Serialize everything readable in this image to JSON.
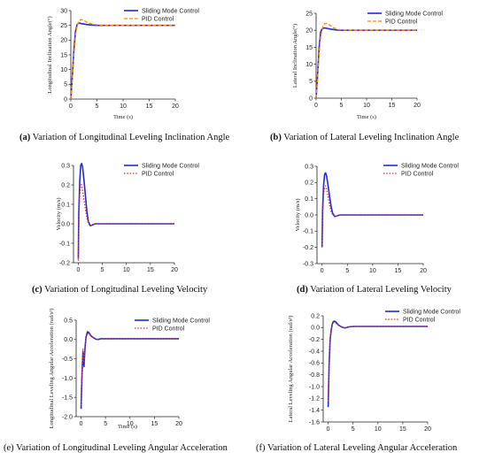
{
  "colors": {
    "smc": "#1f2bd6",
    "pid": "#ff8c00",
    "pid_red": "#e0302a",
    "axis": "#222222"
  },
  "panels": [
    {
      "letter": "(a)",
      "caption_text": "Variation of Longitudinal Leveling Inclination Angle",
      "caption_bold_letter": true
    },
    {
      "letter": "(b)",
      "caption_text": "Variation of Lateral Leveling Inclination Angle",
      "caption_bold_letter": true
    },
    {
      "letter": "(c)",
      "caption_text": "Variation of Longitudinal Leveling Velocity",
      "caption_bold_letter": true
    },
    {
      "letter": "(d)",
      "caption_text": "Variation of Lateral Leveling Velocity",
      "caption_bold_letter": true
    },
    {
      "letter": "(e)",
      "caption_text": "Variation of Longitudinal Leveling Angular Acceleration",
      "caption_bold_letter": false
    },
    {
      "letter": "(f)",
      "caption_text": "Variation of Lateral Leveling Angular Acceleration",
      "caption_bold_letter": false
    }
  ],
  "chart_data": [
    {
      "type": "line",
      "ylabel": "Longitudinal Inclination Angle(°)",
      "xlabel": "Time (s)",
      "xlim": [
        0,
        20
      ],
      "ylim": [
        0,
        30
      ],
      "xticks": [
        0,
        5,
        10,
        15,
        20
      ],
      "yticks": [
        0,
        5,
        10,
        15,
        20,
        25,
        30
      ],
      "legend_position": "top-right",
      "series": [
        {
          "name": "Sliding Mode Control",
          "style": "solid",
          "color": "#1f2bd6",
          "x": [
            0,
            0.3,
            0.6,
            0.9,
            1.2,
            1.5,
            2,
            3,
            4,
            5,
            7,
            10,
            15,
            20
          ],
          "y": [
            0,
            8,
            17,
            23,
            25.3,
            25.8,
            25.6,
            25.3,
            25.1,
            25,
            25,
            25,
            25,
            25
          ]
        },
        {
          "name": "PID Control",
          "style": "dashed",
          "color": "#ff8c00",
          "x": [
            0,
            0.3,
            0.6,
            0.9,
            1.2,
            1.6,
            2,
            2.5,
            3,
            4,
            5,
            6,
            8,
            10,
            15,
            20
          ],
          "y": [
            0,
            7,
            15,
            21.5,
            25,
            26.6,
            27,
            26.7,
            26.1,
            25.5,
            25.2,
            25.05,
            25,
            25,
            25,
            25
          ]
        }
      ]
    },
    {
      "type": "line",
      "ylabel": "Lateral Inclination Angle(°)",
      "xlabel": "Time (s)",
      "xlim": [
        0,
        20
      ],
      "ylim": [
        0,
        25
      ],
      "xticks": [
        0,
        5,
        10,
        15,
        20
      ],
      "yticks": [
        0,
        5,
        10,
        15,
        20,
        25
      ],
      "legend_position": "top-right",
      "series": [
        {
          "name": "Sliding Mode Control",
          "style": "solid",
          "color": "#1f2bd6",
          "x": [
            0,
            0.3,
            0.6,
            0.9,
            1.2,
            1.6,
            2,
            3,
            4,
            5,
            7,
            10,
            15,
            20
          ],
          "y": [
            0,
            7,
            15,
            19.5,
            20.4,
            20.7,
            20.6,
            20.3,
            20.1,
            20,
            20,
            20,
            20,
            20
          ]
        },
        {
          "name": "PID Control",
          "style": "dashed",
          "color": "#ff8c00",
          "x": [
            0,
            0.3,
            0.6,
            0.9,
            1.3,
            1.7,
            2.2,
            2.8,
            3.5,
            4.5,
            5.5,
            7,
            10,
            15,
            20
          ],
          "y": [
            0,
            6,
            13,
            18,
            21,
            21.9,
            22,
            21.4,
            20.7,
            20.2,
            20.05,
            20,
            20,
            20,
            20
          ]
        }
      ]
    },
    {
      "type": "line",
      "ylabel": "Velocity (m/s)",
      "xlabel": "",
      "xlim": [
        -1,
        20
      ],
      "ylim": [
        -0.2,
        0.3
      ],
      "xticks": [
        0,
        5,
        10,
        15,
        20
      ],
      "yticks": [
        -0.2,
        -0.1,
        0.0,
        0.1,
        0.2,
        0.3
      ],
      "legend_position": "top-right",
      "series": [
        {
          "name": "Sliding Mode Control",
          "style": "solid",
          "color": "#1f2bd6",
          "x": [
            0,
            0.1,
            0.3,
            0.5,
            0.7,
            0.9,
            1.2,
            1.5,
            1.8,
            2.1,
            2.5,
            3,
            3.5,
            4,
            5,
            7,
            10,
            15,
            20
          ],
          "y": [
            -0.18,
            0.05,
            0.22,
            0.3,
            0.31,
            0.29,
            0.22,
            0.14,
            0.06,
            0.01,
            -0.01,
            -0.005,
            0,
            0,
            0,
            0,
            0,
            0,
            0
          ]
        },
        {
          "name": "PID Control",
          "style": "dotted",
          "color": "#e0302a",
          "x": [
            0,
            0.1,
            0.3,
            0.5,
            0.7,
            0.9,
            1.2,
            1.5,
            1.8,
            2.1,
            2.5,
            3,
            3.5,
            4,
            5,
            7,
            10,
            15,
            20
          ],
          "y": [
            -0.19,
            0.02,
            0.15,
            0.2,
            0.2,
            0.17,
            0.12,
            0.07,
            0.03,
            0,
            -0.01,
            -0.005,
            0,
            0,
            0,
            0,
            0,
            0,
            0
          ]
        }
      ]
    },
    {
      "type": "line",
      "ylabel": "Velocity (m/s)",
      "xlabel": "",
      "xlim": [
        -1,
        20
      ],
      "ylim": [
        -0.3,
        0.3
      ],
      "xticks": [
        0,
        5,
        10,
        15,
        20
      ],
      "yticks": [
        -0.3,
        -0.2,
        -0.1,
        0.0,
        0.1,
        0.2,
        0.3
      ],
      "legend_position": "top-right",
      "series": [
        {
          "name": "Sliding Mode Control",
          "style": "solid",
          "color": "#1f2bd6",
          "x": [
            0,
            0.1,
            0.3,
            0.5,
            0.7,
            0.9,
            1.2,
            1.5,
            1.8,
            2.1,
            2.5,
            3,
            3.5,
            4,
            5,
            7,
            10,
            15,
            20
          ],
          "y": [
            -0.2,
            0.03,
            0.18,
            0.25,
            0.26,
            0.24,
            0.18,
            0.11,
            0.05,
            0.01,
            -0.01,
            -0.005,
            0,
            0,
            0,
            0,
            0,
            0,
            0
          ]
        },
        {
          "name": "PID Control",
          "style": "dotted",
          "color": "#e0302a",
          "x": [
            0,
            0.1,
            0.3,
            0.5,
            0.7,
            0.9,
            1.2,
            1.5,
            1.8,
            2.1,
            2.5,
            3,
            3.5,
            4,
            5,
            7,
            10,
            15,
            20
          ],
          "y": [
            -0.2,
            0.0,
            0.12,
            0.17,
            0.18,
            0.16,
            0.11,
            0.06,
            0.02,
            0,
            -0.01,
            -0.005,
            0,
            0,
            0,
            0,
            0,
            0,
            0
          ]
        }
      ]
    },
    {
      "type": "line",
      "ylabel": "Longitudinal Leveling Angular Acceleration (rad/s²)",
      "xlabel": "Time (s)",
      "xlim": [
        -1,
        20
      ],
      "ylim": [
        -2.0,
        0.5
      ],
      "xticks": [
        0,
        5,
        10,
        15,
        20
      ],
      "yticks": [
        -2.0,
        -1.5,
        -1.0,
        -0.5,
        0.0,
        0.5
      ],
      "legend_position": "top-right",
      "series": [
        {
          "name": "Sliding Mode Control",
          "style": "solid",
          "color": "#1f2bd6",
          "x": [
            0,
            0.2,
            0.4,
            0.6,
            0.8,
            1.0,
            1.3,
            1.6,
            2,
            2.5,
            3,
            3.5,
            4,
            5,
            7,
            10,
            15,
            20
          ],
          "y": [
            -1.8,
            -0.9,
            -0.3,
            -0.7,
            -0.25,
            0.05,
            0.2,
            0.18,
            0.1,
            0.05,
            0.01,
            0.0,
            0.02,
            0.02,
            0.02,
            0.02,
            0.02,
            0.02
          ]
        },
        {
          "name": "PID Control",
          "style": "dotted",
          "color": "#e0302a",
          "x": [
            0,
            0.2,
            0.4,
            0.6,
            0.8,
            1.0,
            1.3,
            1.6,
            2,
            2.5,
            3,
            3.5,
            4,
            5,
            7,
            10,
            15,
            20
          ],
          "y": [
            -1.7,
            -0.8,
            -0.25,
            -0.6,
            -0.2,
            0.02,
            0.16,
            0.15,
            0.09,
            0.04,
            0.01,
            0.0,
            0.02,
            0.02,
            0.02,
            0.02,
            0.02,
            0.02
          ]
        }
      ]
    },
    {
      "type": "line",
      "ylabel": "Lateral Leveling Angular Acceleration (rad/s²)",
      "xlabel": "",
      "xlim": [
        -1,
        20
      ],
      "ylim": [
        -1.6,
        0.2
      ],
      "xticks": [
        0,
        5,
        10,
        15,
        20
      ],
      "yticks": [
        -1.6,
        -1.4,
        -1.2,
        -1.0,
        -0.8,
        -0.6,
        -0.4,
        -0.2,
        0.0,
        0.2
      ],
      "legend_position": "top-right",
      "series": [
        {
          "name": "Sliding Mode Control",
          "style": "solid",
          "color": "#1f2bd6",
          "x": [
            0,
            0.2,
            0.4,
            0.6,
            0.8,
            1.0,
            1.3,
            1.6,
            2,
            2.5,
            3,
            3.5,
            4,
            5,
            7,
            10,
            15,
            20
          ],
          "y": [
            -1.35,
            -0.6,
            -0.2,
            -0.05,
            0.05,
            0.1,
            0.11,
            0.09,
            0.05,
            0.02,
            0.0,
            -0.005,
            0.01,
            0.02,
            0.02,
            0.02,
            0.02,
            0.02
          ]
        },
        {
          "name": "PID Control",
          "style": "dotted",
          "color": "#e0302a",
          "x": [
            0,
            0.2,
            0.4,
            0.6,
            0.8,
            1.0,
            1.3,
            1.6,
            2,
            2.5,
            3,
            3.5,
            4,
            5,
            7,
            10,
            15,
            20
          ],
          "y": [
            -1.25,
            -0.55,
            -0.18,
            -0.03,
            0.04,
            0.08,
            0.09,
            0.07,
            0.04,
            0.02,
            0.0,
            -0.005,
            0.01,
            0.02,
            0.02,
            0.02,
            0.02,
            0.02
          ]
        }
      ]
    }
  ]
}
